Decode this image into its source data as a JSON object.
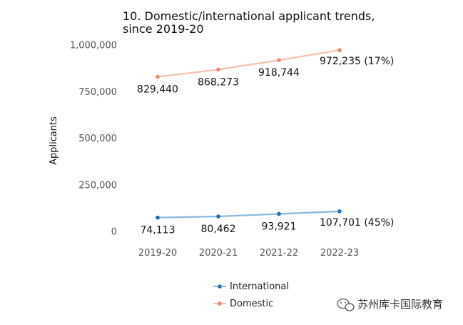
{
  "chart_data": {
    "type": "line",
    "title_lines": [
      "10. Domestic/international applicant trends,",
      "since 2019-20"
    ],
    "ylabel": "Applicants",
    "xlabel": "",
    "categories": [
      "2019-20",
      "2020-21",
      "2021-22",
      "2022-23"
    ],
    "y_ticks": [
      0,
      250000,
      500000,
      750000,
      1000000
    ],
    "y_tick_labels": [
      "0",
      "250,000",
      "500,000",
      "750,000",
      "1,000,000"
    ],
    "ylim": [
      0,
      1000000
    ],
    "grid": false,
    "legend_position": "bottom",
    "series": [
      {
        "name": "International",
        "values": [
          74113,
          80462,
          93921,
          107701
        ],
        "labels": [
          "74,113",
          "80,462",
          "93,921",
          "107,701 (45%)"
        ],
        "line_color": "#8ab8de",
        "marker_color": "#1f6fb4"
      },
      {
        "name": "Domestic",
        "values": [
          829440,
          868273,
          918744,
          972235
        ],
        "labels": [
          "829,440",
          "868,273",
          "918,744",
          "972,235 (17%)"
        ],
        "line_color": "#f5c2b1",
        "marker_color": "#ef8a6c"
      }
    ]
  },
  "watermark": {
    "text": "苏州库卡国际教育",
    "icon": "wechat-icon"
  }
}
